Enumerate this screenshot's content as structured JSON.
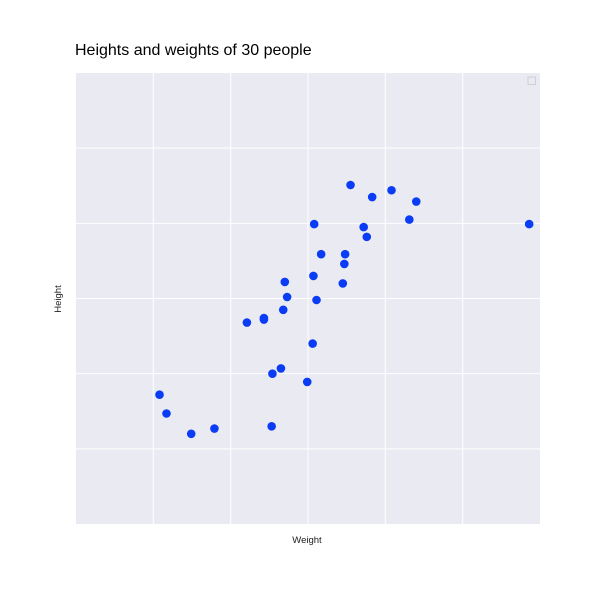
{
  "chart_data": {
    "type": "scatter",
    "title": "Heights and weights of 30 people",
    "xlabel": "Weight",
    "ylabel": "Height",
    "xlim": [
      0,
      6
    ],
    "ylim": [
      0,
      6
    ],
    "grid": true,
    "legend": "top-right",
    "series": [
      {
        "color": "#0a3cf5",
        "points": [
          [
            1.08,
            1.72
          ],
          [
            1.17,
            1.47
          ],
          [
            1.49,
            1.2
          ],
          [
            1.79,
            1.27
          ],
          [
            2.54,
            2.0
          ],
          [
            2.65,
            2.07
          ],
          [
            2.21,
            2.68
          ],
          [
            2.43,
            2.72
          ],
          [
            2.43,
            2.74
          ],
          [
            2.53,
            1.3
          ],
          [
            2.68,
            2.85
          ],
          [
            2.7,
            3.22
          ],
          [
            2.73,
            3.02
          ],
          [
            2.99,
            1.89
          ],
          [
            3.06,
            2.4
          ],
          [
            3.07,
            3.3
          ],
          [
            3.11,
            2.98
          ],
          [
            3.08,
            3.99
          ],
          [
            3.17,
            3.59
          ],
          [
            3.48,
            3.59
          ],
          [
            3.47,
            3.46
          ],
          [
            3.45,
            3.2
          ],
          [
            3.55,
            4.51
          ],
          [
            3.72,
            3.95
          ],
          [
            3.76,
            3.82
          ],
          [
            3.83,
            4.35
          ],
          [
            4.08,
            4.44
          ],
          [
            4.31,
            4.05
          ],
          [
            4.4,
            4.29
          ],
          [
            5.86,
            3.99
          ]
        ]
      }
    ]
  }
}
